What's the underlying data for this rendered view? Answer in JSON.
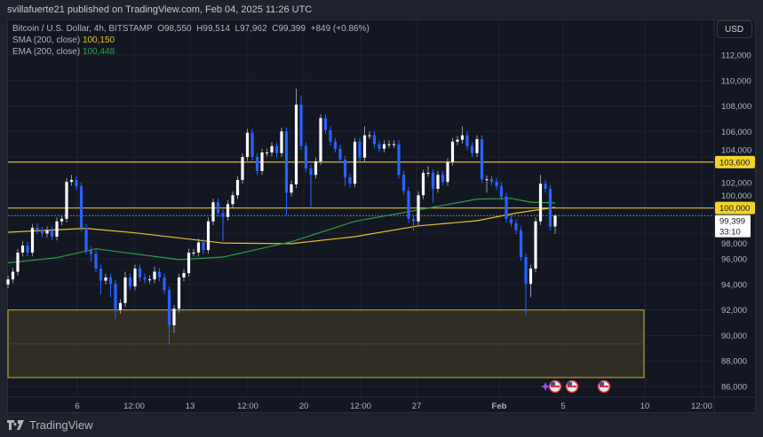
{
  "header": {
    "published": "svillafuerte21 published on TradingView.com, Feb 04, 2025 11:26 UTC"
  },
  "legend": {
    "symbol": "Bitcoin / U.S. Dollar, 4h, BITSTAMP",
    "open": "O98,550",
    "high": "H99,514",
    "low": "L97,962",
    "close": "C99,399",
    "change": "+849 (+0.86%)",
    "sma_label": "SMA (200, close)",
    "sma_value": "100,150",
    "ema_label": "EMA (200, close)",
    "ema_value": "100,448"
  },
  "currency_button": "USD",
  "footer": {
    "brand": "TradingView"
  },
  "colors": {
    "up": "#ffffff",
    "down": "#2962ff",
    "sma": "#e6c229",
    "ema": "#2e9e44",
    "level": "#c9b23a",
    "zone_fill": "#3a3626"
  },
  "chart_data": {
    "type": "candlestick",
    "title": "Bitcoin / U.S. Dollar, 4h, BITSTAMP",
    "ylim": [
      85000,
      113500
    ],
    "y_ticks": [
      "112,000",
      "110,000",
      "108,000",
      "106,000",
      "104,000",
      "102,000",
      "100,000",
      "98,000",
      "96,000",
      "94,000",
      "92,000",
      "90,000",
      "88,000",
      "86,000"
    ],
    "y_tick_values": [
      112000,
      110000,
      108000,
      106000,
      104000,
      102000,
      100000,
      98000,
      96000,
      94000,
      92000,
      90000,
      88000,
      86000
    ],
    "x_ticks": [
      "6",
      "12:00",
      "13",
      "12:00",
      "20",
      "12:00",
      "27",
      "Feb",
      "5",
      "10",
      "12:00"
    ],
    "grid": true,
    "open": [
      94000,
      94400,
      95000,
      96500,
      97050,
      96500,
      98450,
      98250,
      98000,
      98250,
      97750,
      98950,
      99150,
      102050,
      102200,
      101700,
      98450,
      96650,
      96400,
      95250,
      94300,
      94550,
      94050,
      92000,
      92550,
      94550,
      93850,
      95250,
      94550,
      94400,
      94400,
      95000,
      94550,
      93550,
      90800,
      92100,
      94550,
      94900,
      96500,
      96500,
      97300,
      96700,
      98950,
      100450,
      99600,
      99300,
      100300,
      101000,
      102200,
      104000,
      105900,
      104000,
      102900,
      104350,
      104350,
      104850,
      104300,
      106000,
      101200,
      101850,
      108100,
      104850,
      103100,
      102600,
      103650,
      107050,
      106100,
      105200,
      104650,
      103800,
      102400,
      101900,
      105200,
      103950,
      105700,
      105700,
      105000,
      104650,
      105000,
      105000,
      105000,
      102600,
      101350,
      99150,
      98950,
      101000,
      102750,
      102750,
      101500,
      102600,
      102050,
      103600,
      105200,
      105350,
      105700,
      104850,
      104300,
      105400,
      102250,
      102250,
      102050,
      101700,
      100900,
      99150,
      98800,
      98250,
      96150,
      94050,
      95250,
      98950,
      101900,
      101500,
      98550
    ],
    "high": [
      94700,
      95300,
      96800,
      97400,
      97350,
      98750,
      98800,
      98550,
      98550,
      98550,
      99250,
      99450,
      102350,
      102600,
      102500,
      102000,
      98750,
      96950,
      96700,
      95550,
      94850,
      94850,
      94350,
      92850,
      95000,
      94850,
      95550,
      95550,
      94850,
      94700,
      95400,
      95300,
      94850,
      93850,
      92400,
      94850,
      95200,
      96800,
      96800,
      97600,
      97600,
      99250,
      100750,
      100750,
      99900,
      100600,
      101300,
      102500,
      104300,
      106200,
      106200,
      104300,
      104650,
      104650,
      105150,
      105150,
      106300,
      106300,
      102150,
      109350,
      108800,
      105150,
      103400,
      103950,
      107350,
      107350,
      106400,
      105500,
      104950,
      104100,
      102700,
      105500,
      105500,
      106400,
      106000,
      106000,
      105300,
      105300,
      105300,
      105300,
      105300,
      102900,
      101650,
      99450,
      101300,
      103000,
      103300,
      103050,
      102900,
      102900,
      103900,
      105500,
      105650,
      106400,
      106000,
      105150,
      105700,
      105700,
      102550,
      102550,
      102350,
      102000,
      101200,
      99450,
      99100,
      98550,
      96450,
      95550,
      99250,
      102600,
      102200,
      101800,
      99514
    ],
    "low": [
      93700,
      94100,
      94700,
      96200,
      96200,
      96200,
      97950,
      97700,
      97700,
      97450,
      97450,
      98650,
      98850,
      101750,
      101400,
      98150,
      96350,
      95800,
      94950,
      93200,
      94000,
      93000,
      91300,
      91700,
      92250,
      93550,
      93550,
      94250,
      94100,
      94100,
      94100,
      94250,
      93250,
      89300,
      90200,
      91800,
      94250,
      94600,
      96200,
      96200,
      96400,
      96400,
      98650,
      99300,
      97400,
      99000,
      100000,
      100700,
      101900,
      103700,
      103700,
      102600,
      102600,
      104050,
      104050,
      104000,
      104000,
      99400,
      100900,
      101550,
      104550,
      102800,
      100100,
      102300,
      103350,
      105800,
      104900,
      104350,
      103500,
      101700,
      101600,
      101600,
      103650,
      103650,
      105400,
      104700,
      104350,
      104350,
      104700,
      104700,
      102300,
      101050,
      98850,
      98200,
      98650,
      100700,
      102450,
      100400,
      101200,
      101750,
      101750,
      103300,
      104900,
      105050,
      104550,
      104000,
      104000,
      101950,
      101200,
      101750,
      101400,
      100600,
      98850,
      98500,
      97950,
      95850,
      91600,
      93000,
      94950,
      98650,
      101200,
      98250,
      97962
    ],
    "close": [
      94400,
      95000,
      96500,
      97050,
      96500,
      98450,
      98250,
      98000,
      98250,
      97750,
      98950,
      99150,
      102050,
      102200,
      101700,
      98450,
      96650,
      96400,
      95250,
      94300,
      94550,
      94050,
      92000,
      92550,
      94550,
      93850,
      95250,
      94550,
      94400,
      94400,
      95000,
      94550,
      93550,
      90800,
      92100,
      94550,
      94900,
      96500,
      96500,
      97300,
      96700,
      98950,
      100450,
      99600,
      99300,
      100300,
      101000,
      102200,
      104000,
      105900,
      104000,
      102900,
      104350,
      104350,
      104850,
      104300,
      106000,
      101200,
      101850,
      108100,
      104850,
      103100,
      102600,
      103650,
      107050,
      106100,
      105200,
      104650,
      103800,
      102400,
      101900,
      105200,
      103950,
      105700,
      105700,
      105000,
      104650,
      105000,
      105000,
      105000,
      102600,
      101350,
      99150,
      98950,
      101000,
      102750,
      102750,
      101500,
      102600,
      102050,
      103600,
      105200,
      105350,
      105700,
      104850,
      104300,
      105400,
      102250,
      102250,
      102050,
      101700,
      100900,
      99150,
      98800,
      98250,
      96150,
      94050,
      95250,
      98950,
      101900,
      101500,
      98550,
      99399
    ],
    "sma_200": [
      [
        0,
        98100
      ],
      [
        16,
        98400
      ],
      [
        26,
        98050
      ],
      [
        44,
        97250
      ],
      [
        58,
        97200
      ],
      [
        71,
        97750
      ],
      [
        84,
        98600
      ],
      [
        96,
        99000
      ],
      [
        104,
        99600
      ],
      [
        112,
        100050
      ]
    ],
    "ema_200": [
      [
        0,
        95700
      ],
      [
        10,
        96100
      ],
      [
        18,
        96800
      ],
      [
        35,
        95950
      ],
      [
        44,
        96150
      ],
      [
        58,
        97350
      ],
      [
        71,
        98950
      ],
      [
        84,
        99850
      ],
      [
        96,
        100700
      ],
      [
        103,
        100750
      ],
      [
        107,
        100450
      ],
      [
        112,
        100400
      ]
    ],
    "levels": [
      {
        "value": 103600,
        "label": "103,600"
      },
      {
        "value": 100000,
        "label": "100,000"
      }
    ],
    "demand_zone": {
      "top": 92000,
      "bottom": 86700
    },
    "last_price": {
      "label": "99,399",
      "countdown": "33:10",
      "value": 99399
    },
    "events": [
      "us-flag-icon",
      "us-flag-icon",
      "us-flag-icon"
    ]
  }
}
